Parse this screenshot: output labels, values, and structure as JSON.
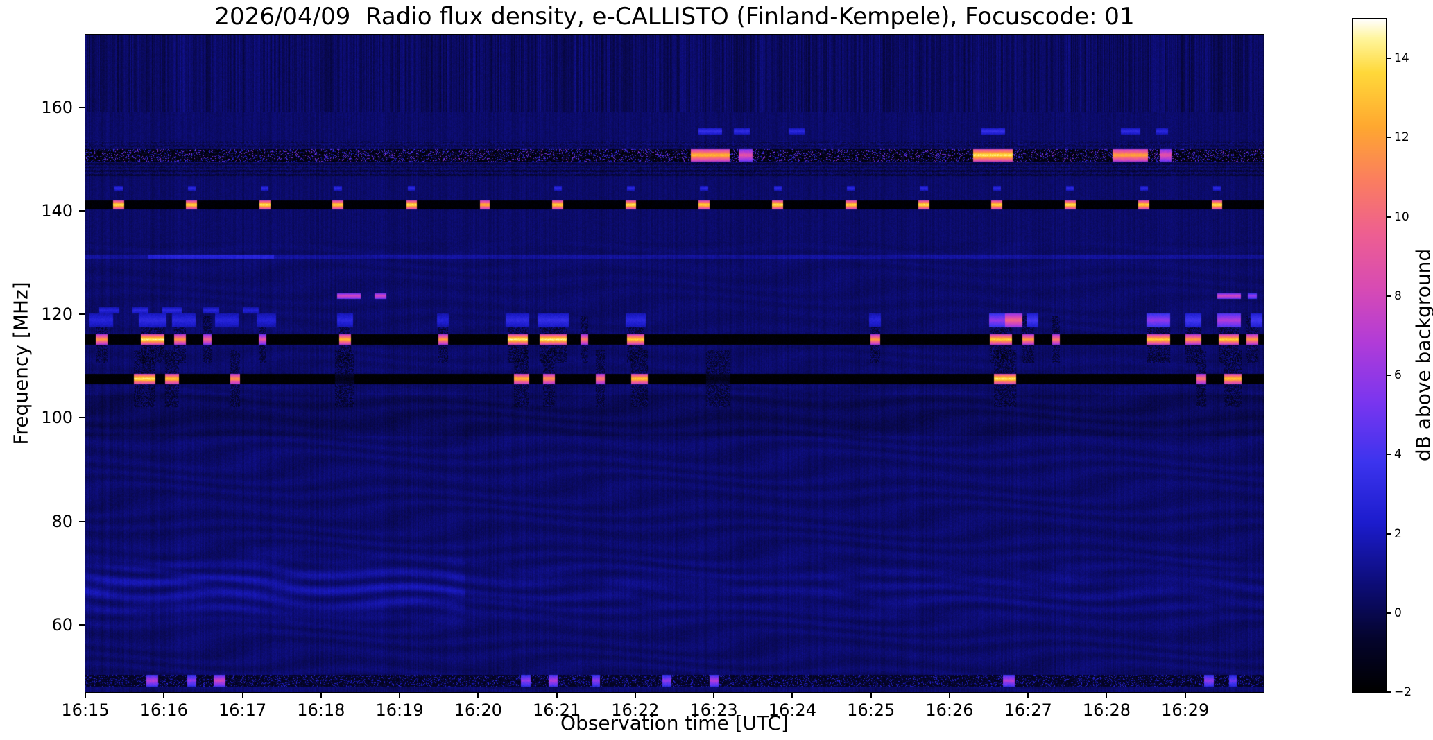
{
  "chart_data": {
    "type": "heatmap",
    "title": "2026/04/09  Radio flux density, e-CALLISTO (Finland-Kempele), Focuscode: 01",
    "xlabel": "Observation time [UTC]",
    "ylabel": "Frequency [MHz]",
    "x_ticks": [
      "16:15",
      "16:16",
      "16:17",
      "16:18",
      "16:19",
      "16:20",
      "16:21",
      "16:22",
      "16:23",
      "16:24",
      "16:25",
      "16:26",
      "16:27",
      "16:28",
      "16:29"
    ],
    "duration_min": 15,
    "y_ticks": [
      160,
      140,
      120,
      100,
      80,
      60
    ],
    "freq_range_mhz": [
      47,
      174
    ],
    "grid": false,
    "background_db": 0.45,
    "colorbar": {
      "label": "dB above background",
      "ticks": [
        14,
        12,
        10,
        8,
        6,
        4,
        2,
        0,
        -2
      ],
      "vmin": -2,
      "vmax": 15,
      "colormap": [
        [
          0.0,
          "#000000"
        ],
        [
          0.08,
          "#05052e"
        ],
        [
          0.16,
          "#0d0d78"
        ],
        [
          0.25,
          "#1c1ccd"
        ],
        [
          0.34,
          "#3c34ee"
        ],
        [
          0.43,
          "#7a36f0"
        ],
        [
          0.52,
          "#b23cd8"
        ],
        [
          0.6,
          "#d84bb4"
        ],
        [
          0.68,
          "#ee5f92"
        ],
        [
          0.76,
          "#fb7e60"
        ],
        [
          0.84,
          "#ffa830"
        ],
        [
          0.92,
          "#ffd93a"
        ],
        [
          0.97,
          "#fff59a"
        ],
        [
          1.0,
          "#ffffff"
        ]
      ]
    },
    "rfi_bands": [
      {
        "name": "150.8-mhz-band",
        "f0": 150.8,
        "hw": 1.2,
        "base": -1.6,
        "speckle": 8,
        "smear": 0,
        "bursts": [
          [
            7.95,
            0.5,
            13
          ],
          [
            8.4,
            0.18,
            9
          ],
          [
            11.55,
            0.5,
            14.5
          ],
          [
            13.3,
            0.45,
            12.5
          ],
          [
            13.75,
            0.15,
            9
          ]
        ]
      },
      {
        "name": "141-mhz-band",
        "f0": 141.2,
        "hw": 0.85,
        "base": -1.85,
        "speckle": 0,
        "smear": 0,
        "bursts": [
          [
            0.42,
            0.14,
            14.5
          ],
          [
            1.35,
            0.14,
            14
          ],
          [
            2.28,
            0.14,
            14.5
          ],
          [
            3.21,
            0.14,
            14
          ],
          [
            4.15,
            0.14,
            14.5
          ],
          [
            5.08,
            0.12,
            13
          ],
          [
            6.01,
            0.14,
            14
          ],
          [
            6.94,
            0.14,
            14.5
          ],
          [
            7.87,
            0.14,
            14
          ],
          [
            8.81,
            0.14,
            14.5
          ],
          [
            9.74,
            0.14,
            14
          ],
          [
            10.67,
            0.14,
            14.5
          ],
          [
            11.6,
            0.14,
            14
          ],
          [
            12.53,
            0.14,
            14.5
          ],
          [
            13.47,
            0.14,
            14
          ],
          [
            14.4,
            0.14,
            14.5
          ]
        ]
      },
      {
        "name": "115-mhz-band",
        "f0": 115.2,
        "hw": 1.0,
        "base": -1.85,
        "speckle": 0,
        "smear": 4.5,
        "bursts": [
          [
            0.2,
            0.15,
            12
          ],
          [
            0.85,
            0.3,
            14.5
          ],
          [
            1.2,
            0.15,
            12
          ],
          [
            1.55,
            0.1,
            10
          ],
          [
            2.25,
            0.1,
            9
          ],
          [
            3.3,
            0.15,
            13
          ],
          [
            4.55,
            0.12,
            12
          ],
          [
            5.5,
            0.25,
            14.5
          ],
          [
            5.95,
            0.35,
            14.5
          ],
          [
            6.35,
            0.1,
            11
          ],
          [
            7.0,
            0.22,
            13.5
          ],
          [
            10.05,
            0.12,
            12
          ],
          [
            11.65,
            0.28,
            13.5
          ],
          [
            12.0,
            0.15,
            12
          ],
          [
            12.35,
            0.1,
            11
          ],
          [
            13.65,
            0.3,
            13.5
          ],
          [
            14.1,
            0.2,
            12
          ],
          [
            14.55,
            0.25,
            13.5
          ],
          [
            14.85,
            0.15,
            12
          ]
        ]
      },
      {
        "name": "107-mhz-band",
        "f0": 107.6,
        "hw": 1.0,
        "base": -1.9,
        "speckle": 0,
        "smear": 5.5,
        "bursts": [
          [
            0.75,
            0.28,
            14.5
          ],
          [
            1.1,
            0.18,
            13.5
          ],
          [
            1.9,
            0.12,
            12
          ],
          [
            3.3,
            0.25,
            -1.2
          ],
          [
            5.55,
            0.2,
            13
          ],
          [
            5.9,
            0.15,
            12
          ],
          [
            6.55,
            0.12,
            11
          ],
          [
            7.05,
            0.22,
            13.5
          ],
          [
            8.05,
            0.3,
            -1.2
          ],
          [
            11.7,
            0.28,
            14.5
          ],
          [
            14.2,
            0.12,
            11
          ],
          [
            14.6,
            0.22,
            13.5
          ]
        ]
      },
      {
        "name": "49-mhz-band",
        "f0": 49.3,
        "hw": 1.1,
        "base": -1.0,
        "speckle": 4.5,
        "smear": 0,
        "bursts": [
          [
            0.85,
            0.15,
            7
          ],
          [
            1.35,
            0.12,
            6
          ],
          [
            1.7,
            0.15,
            8
          ],
          [
            5.6,
            0.12,
            6
          ],
          [
            5.95,
            0.12,
            7
          ],
          [
            6.5,
            0.1,
            6
          ],
          [
            7.4,
            0.12,
            6
          ],
          [
            8.0,
            0.12,
            7
          ],
          [
            11.75,
            0.15,
            7
          ],
          [
            14.3,
            0.12,
            6
          ],
          [
            14.6,
            0.1,
            5
          ]
        ]
      }
    ],
    "marker_rows": [
      {
        "name": "155-mhz-dashes",
        "f0": 155.4,
        "hw": 0.6,
        "marks": [
          [
            7.95,
            0.3,
            3.5
          ],
          [
            8.35,
            0.2,
            3.2
          ],
          [
            9.05,
            0.2,
            3
          ],
          [
            11.55,
            0.3,
            3.5
          ],
          [
            13.3,
            0.25,
            3.2
          ],
          [
            13.7,
            0.15,
            3
          ]
        ]
      },
      {
        "name": "144-mhz-ticks",
        "f0": 144.4,
        "hw": 0.5,
        "marks": [
          [
            0.42,
            0.1,
            3
          ],
          [
            1.35,
            0.1,
            3
          ],
          [
            2.28,
            0.1,
            3
          ],
          [
            3.21,
            0.1,
            3
          ],
          [
            4.15,
            0.1,
            3
          ],
          [
            6.01,
            0.1,
            3
          ],
          [
            6.94,
            0.1,
            3
          ],
          [
            7.87,
            0.1,
            3
          ],
          [
            8.81,
            0.1,
            3
          ],
          [
            9.74,
            0.1,
            3
          ],
          [
            10.67,
            0.1,
            3
          ],
          [
            11.6,
            0.1,
            3
          ],
          [
            12.53,
            0.1,
            3
          ],
          [
            13.47,
            0.1,
            3
          ],
          [
            14.4,
            0.1,
            3
          ]
        ]
      },
      {
        "name": "123-mhz-dashes",
        "f0": 123.6,
        "hw": 0.55,
        "marks": [
          [
            3.35,
            0.3,
            8
          ],
          [
            3.75,
            0.15,
            8
          ],
          [
            14.55,
            0.3,
            8
          ],
          [
            14.85,
            0.12,
            6
          ]
        ]
      },
      {
        "name": "119-mhz-activity",
        "f0": 118.9,
        "hw": 1.3,
        "marks": [
          [
            0.2,
            0.3,
            2.8
          ],
          [
            0.85,
            0.35,
            3.2
          ],
          [
            1.25,
            0.3,
            3
          ],
          [
            1.8,
            0.3,
            2.8
          ],
          [
            2.3,
            0.25,
            2.6
          ],
          [
            3.3,
            0.2,
            3
          ],
          [
            4.55,
            0.15,
            2.6
          ],
          [
            5.5,
            0.3,
            3.2
          ],
          [
            5.95,
            0.4,
            3.4
          ],
          [
            7.0,
            0.25,
            3
          ],
          [
            10.05,
            0.15,
            2.8
          ],
          [
            11.6,
            0.2,
            6
          ],
          [
            11.8,
            0.25,
            10
          ],
          [
            12.05,
            0.15,
            4
          ],
          [
            13.65,
            0.3,
            6
          ],
          [
            14.1,
            0.2,
            4
          ],
          [
            14.55,
            0.3,
            7
          ],
          [
            14.9,
            0.15,
            4
          ]
        ]
      },
      {
        "name": "121-mhz-dashes",
        "f0": 120.8,
        "hw": 0.6,
        "marks": [
          [
            0.3,
            0.25,
            2.8
          ],
          [
            0.7,
            0.2,
            3
          ],
          [
            1.1,
            0.25,
            3
          ],
          [
            1.6,
            0.2,
            2.8
          ],
          [
            2.1,
            0.2,
            2.6
          ]
        ]
      }
    ],
    "features": {
      "wavy_band": {
        "f_center_mhz": 67,
        "f_sigma_mhz": 5.2,
        "bright_until_min": 4.83,
        "amp_bright": 1.25,
        "amp_dim": 0.45
      },
      "fm_dark_band": {
        "f_lo": 96.5,
        "f_hi": 104.5,
        "dv": -0.3
      },
      "stripe_bands": [
        {
          "f_lo": 146.8,
          "f_hi": 149.8,
          "amp": 0.9
        },
        {
          "f_lo": 152.1,
          "f_hi": 153.6,
          "amp": 0.5
        }
      ],
      "line_131": {
        "f0": 131.2,
        "v_add": 0.9,
        "bright_t": [
          0.8,
          2.4
        ]
      },
      "top_noise_above_mhz": 159
    }
  }
}
